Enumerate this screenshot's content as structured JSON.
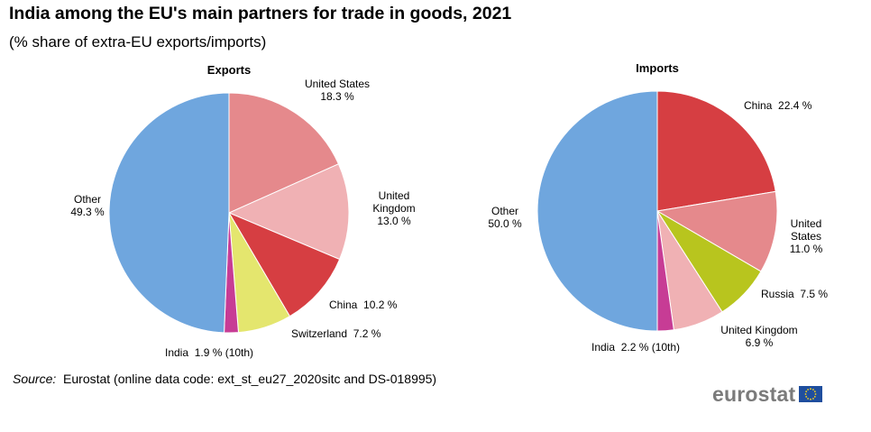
{
  "header": {
    "title": "India among the EU's main partners for trade in goods, 2021",
    "subtitle": "(% share of extra-EU exports/imports)"
  },
  "source": {
    "label": "Source:",
    "text": "Eurostat (online data code: ext_st_eu27_2020sitc and DS-018995)"
  },
  "logo": {
    "text": "eurostat",
    "flag_icon": "eu-flag-icon"
  },
  "chart_data": [
    {
      "type": "pie",
      "title": "Exports",
      "slices": [
        {
          "name": "United States",
          "value": 18.3,
          "label_lines": [
            "United States",
            "18.3 %"
          ],
          "color": "#e5898c"
        },
        {
          "name": "United Kingdom",
          "value": 13.0,
          "label_lines": [
            "United",
            "Kingdom",
            "13.0 %"
          ],
          "color": "#f0b1b4"
        },
        {
          "name": "China",
          "value": 10.2,
          "label_lines": [
            "China  10.2 %"
          ],
          "color": "#d63e42"
        },
        {
          "name": "Switzerland",
          "value": 7.2,
          "label_lines": [
            "Switzerland  7.2 %"
          ],
          "color": "#e4e66e"
        },
        {
          "name": "India",
          "value": 1.9,
          "label_lines": [
            "India  1.9 % (10th)"
          ],
          "color": "#c73c95"
        },
        {
          "name": "Other",
          "value": 49.3,
          "label_lines": [
            "Other",
            "49.3 %"
          ],
          "color": "#6fa6de"
        }
      ]
    },
    {
      "type": "pie",
      "title": "Imports",
      "slices": [
        {
          "name": "China",
          "value": 22.4,
          "label_lines": [
            "China  22.4 %"
          ],
          "color": "#d63e42"
        },
        {
          "name": "United States",
          "value": 11.0,
          "label_lines": [
            "United",
            "States",
            "11.0 %"
          ],
          "color": "#e5898c"
        },
        {
          "name": "Russia",
          "value": 7.5,
          "label_lines": [
            "Russia  7.5 %"
          ],
          "color": "#b8c51e"
        },
        {
          "name": "United Kingdom",
          "value": 6.9,
          "label_lines": [
            "United Kingdom",
            "6.9 %"
          ],
          "color": "#f0b1b4"
        },
        {
          "name": "India",
          "value": 2.2,
          "label_lines": [
            "India  2.2 % (10th)"
          ],
          "color": "#c73c95"
        },
        {
          "name": "Other",
          "value": 50.0,
          "label_lines": [
            "Other",
            "50.0 %"
          ],
          "color": "#6fa6de"
        }
      ]
    }
  ]
}
